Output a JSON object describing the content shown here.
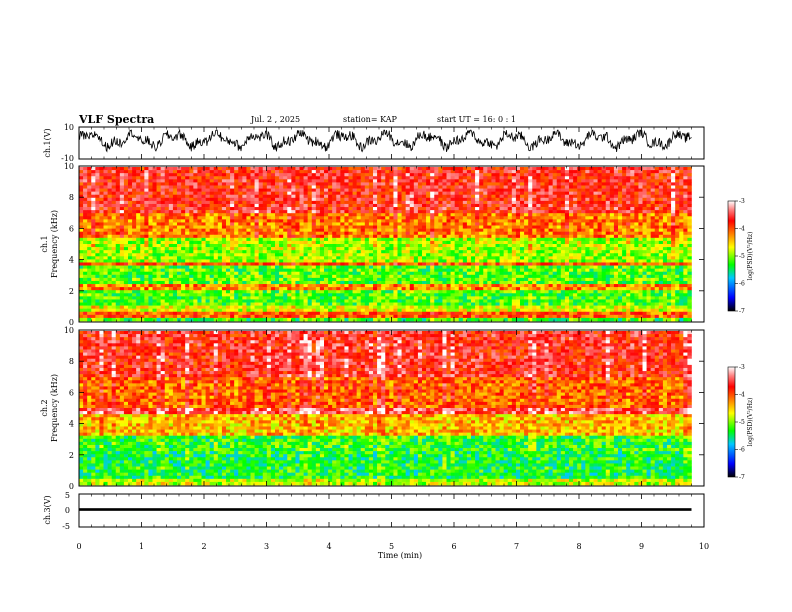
{
  "header": {
    "title": "VLF Spectra",
    "date": "Jul. 2 , 2025",
    "station": "station= KAP",
    "start": "start UT =  16: 0 : 1"
  },
  "chart_data": [
    {
      "type": "line",
      "panel": "ch1-waveform",
      "ylabel": "ch.1(V)",
      "ylim": [
        -10,
        10
      ],
      "yticks": [
        "10",
        "-10"
      ],
      "xlim": [
        0,
        10
      ],
      "x_extent_data": [
        0,
        9.8
      ],
      "series": [
        {
          "values_description_free": true,
          "mean": 2.0,
          "min": -8,
          "max": 8
        }
      ],
      "color": "#000000"
    },
    {
      "type": "heatmap",
      "panel": "ch1-spectrogram",
      "ylabel": "ch.1\nFrequency (kHz)",
      "ylim": [
        0,
        10
      ],
      "yticks": [
        "0",
        "2",
        "4",
        "6",
        "8",
        "10"
      ],
      "xlim": [
        0,
        10
      ],
      "x_extent_data": [
        0,
        9.8
      ],
      "colorbar": {
        "label": "log(PSD)(V²/Hz)",
        "range": [
          -7,
          -3
        ],
        "ticks": [
          "-3",
          "-4",
          "-5",
          "-6",
          "-7"
        ],
        "colors": [
          "#000000",
          "#0000ff",
          "#00c8ff",
          "#00ff00",
          "#ffff00",
          "#ff8000",
          "#ff0000",
          "#ff8080",
          "#ffffff"
        ]
      },
      "bands_khz": [
        {
          "from": 0.0,
          "to": 0.2,
          "level": -5.3
        },
        {
          "from": 0.2,
          "to": 0.6,
          "level": -4.1
        },
        {
          "from": 0.6,
          "to": 1.0,
          "level": -4.8
        },
        {
          "from": 1.0,
          "to": 2.0,
          "level": -5.2
        },
        {
          "from": 2.0,
          "to": 2.4,
          "level": -4.3
        },
        {
          "from": 2.4,
          "to": 3.6,
          "level": -5.2
        },
        {
          "from": 3.6,
          "to": 3.9,
          "level": -4.0
        },
        {
          "from": 3.9,
          "to": 5.4,
          "level": -5.0
        },
        {
          "from": 5.4,
          "to": 7.0,
          "level": -4.3
        },
        {
          "from": 7.0,
          "to": 10.0,
          "level": -3.8
        }
      ]
    },
    {
      "type": "heatmap",
      "panel": "ch2-spectrogram",
      "ylabel": "ch.2\nFrequency (kHz)",
      "ylim": [
        0,
        10
      ],
      "yticks": [
        "0",
        "2",
        "4",
        "6",
        "8",
        "10"
      ],
      "xlim": [
        0,
        10
      ],
      "x_extent_data": [
        0,
        9.8
      ],
      "colorbar": {
        "label": "log(PSD)(V²/Hz)",
        "range": [
          -7,
          -3
        ],
        "ticks": [
          "-3",
          "-4",
          "-5",
          "-6",
          "-7"
        ],
        "colors": [
          "#000000",
          "#0000ff",
          "#00c8ff",
          "#00ff00",
          "#ffff00",
          "#ff8000",
          "#ff0000",
          "#ff8080",
          "#ffffff"
        ]
      },
      "bands_khz": [
        {
          "from": 0.0,
          "to": 0.4,
          "level": -4.9
        },
        {
          "from": 0.4,
          "to": 2.2,
          "level": -5.4
        },
        {
          "from": 2.2,
          "to": 3.2,
          "level": -5.3
        },
        {
          "from": 3.2,
          "to": 4.6,
          "level": -4.5
        },
        {
          "from": 4.6,
          "to": 5.0,
          "level": -3.6
        },
        {
          "from": 5.0,
          "to": 7.0,
          "level": -4.2
        },
        {
          "from": 7.0,
          "to": 10.0,
          "level": -3.8
        }
      ]
    },
    {
      "type": "line",
      "panel": "ch3-waveform",
      "ylabel": "ch.3(V)",
      "ylim": [
        -5,
        5
      ],
      "yticks": [
        "5",
        "0",
        "-5"
      ],
      "xlim": [
        0,
        10
      ],
      "x_extent_data": [
        0,
        9.8
      ],
      "series": [
        {
          "level": 0.3,
          "spread": 0.4
        }
      ],
      "color": "#000000"
    }
  ],
  "xaxis": {
    "label": "Time (min)",
    "ticks": [
      "0",
      "1",
      "2",
      "3",
      "4",
      "5",
      "6",
      "7",
      "8",
      "9",
      "10"
    ],
    "range": [
      0,
      10
    ]
  }
}
